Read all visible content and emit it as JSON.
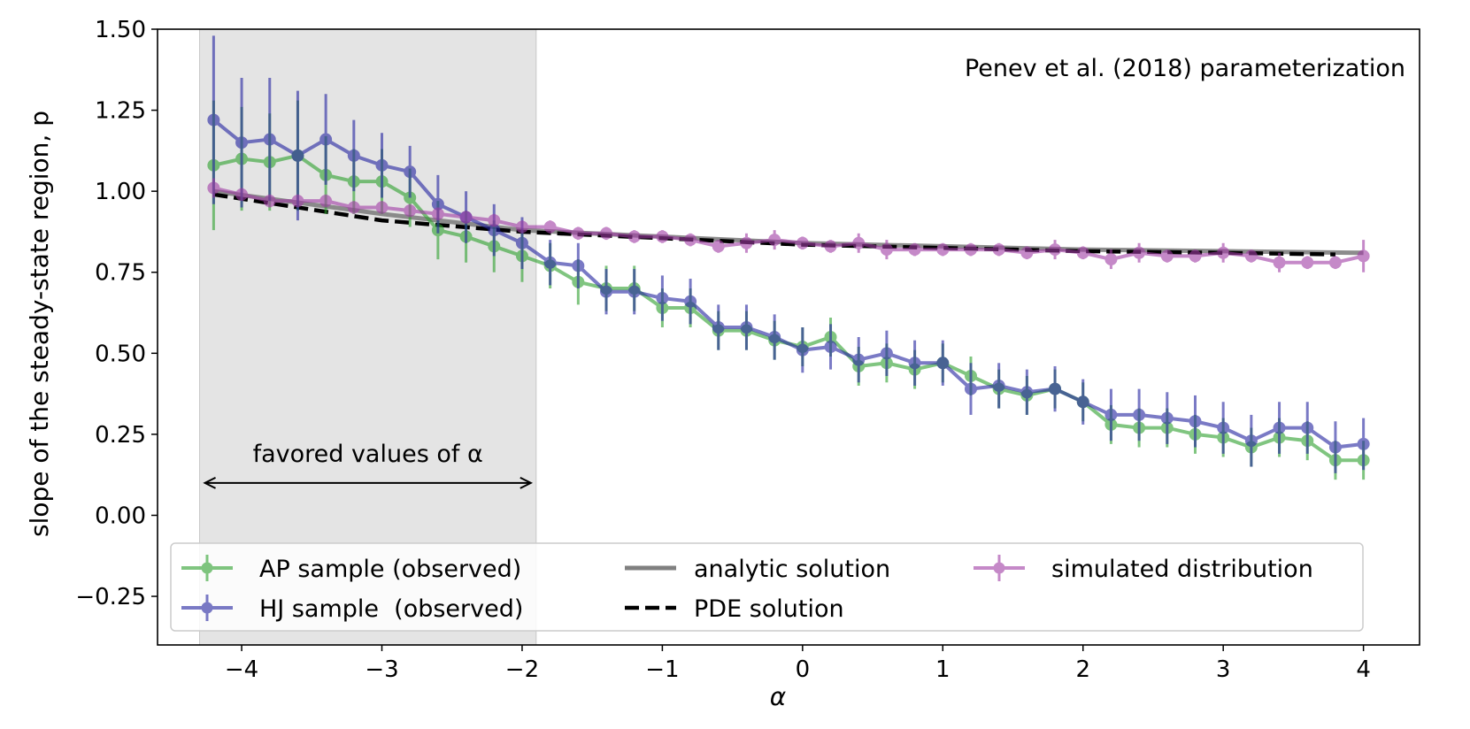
{
  "chart_data": {
    "type": "line",
    "title": "",
    "annotation": "Penev et al. (2018) parameterization",
    "xlabel": "α",
    "ylabel": "slope of the steady-state region, p",
    "xlim": [
      -4.6,
      4.4
    ],
    "ylim": [
      -0.4,
      1.5
    ],
    "xticks": [
      -4,
      -3,
      -2,
      -1,
      0,
      1,
      2,
      3,
      4
    ],
    "xtick_labels": [
      "−4",
      "−3",
      "−2",
      "−1",
      "0",
      "1",
      "2",
      "3",
      "4"
    ],
    "yticks": [
      -0.25,
      0.0,
      0.25,
      0.5,
      0.75,
      1.0,
      1.25,
      1.5
    ],
    "ytick_labels": [
      "−0.25",
      "0.00",
      "0.25",
      "0.50",
      "0.75",
      "1.00",
      "1.25",
      "1.50"
    ],
    "grid": false,
    "shaded_region": {
      "x": [
        -4.3,
        -1.9
      ],
      "label": "favored values of α"
    },
    "legend_placement": "lower-center",
    "x": [
      -4.2,
      -4.0,
      -3.8,
      -3.6,
      -3.4,
      -3.2,
      -3.0,
      -2.8,
      -2.6,
      -2.4,
      -2.2,
      -2.0,
      -1.8,
      -1.6,
      -1.4,
      -1.2,
      -1.0,
      -0.8,
      -0.6,
      -0.4,
      -0.2,
      0.0,
      0.2,
      0.4,
      0.6,
      0.8,
      1.0,
      1.2,
      1.4,
      1.6,
      1.8,
      2.0,
      2.2,
      2.4,
      2.6,
      2.8,
      3.0,
      3.2,
      3.4,
      3.6,
      3.8,
      4.0
    ],
    "series": [
      {
        "name": "AP sample (observed)",
        "color": "#2ca02c",
        "style": "errorbar",
        "values": [
          1.08,
          1.1,
          1.09,
          1.11,
          1.05,
          1.03,
          1.03,
          0.98,
          0.88,
          0.86,
          0.83,
          0.8,
          0.77,
          0.72,
          0.7,
          0.7,
          0.64,
          0.64,
          0.57,
          0.57,
          0.54,
          0.52,
          0.55,
          0.46,
          0.47,
          0.45,
          0.47,
          0.43,
          0.39,
          0.37,
          0.39,
          0.35,
          0.28,
          0.27,
          0.27,
          0.25,
          0.24,
          0.21,
          0.24,
          0.23,
          0.17,
          0.17
        ],
        "errors": [
          0.2,
          0.16,
          0.15,
          0.17,
          0.12,
          0.1,
          0.1,
          0.09,
          0.09,
          0.08,
          0.08,
          0.08,
          0.07,
          0.07,
          0.07,
          0.07,
          0.06,
          0.06,
          0.06,
          0.06,
          0.06,
          0.06,
          0.06,
          0.06,
          0.06,
          0.06,
          0.06,
          0.06,
          0.06,
          0.06,
          0.06,
          0.06,
          0.06,
          0.06,
          0.06,
          0.06,
          0.06,
          0.06,
          0.06,
          0.06,
          0.06,
          0.06
        ]
      },
      {
        "name": "HJ sample  (observed)",
        "color": "#2323a0",
        "style": "errorbar",
        "values": [
          1.22,
          1.15,
          1.16,
          1.11,
          1.16,
          1.11,
          1.08,
          1.06,
          0.96,
          0.92,
          0.88,
          0.84,
          0.78,
          0.77,
          0.69,
          0.69,
          0.67,
          0.66,
          0.58,
          0.58,
          0.55,
          0.51,
          0.52,
          0.48,
          0.5,
          0.47,
          0.47,
          0.39,
          0.4,
          0.38,
          0.39,
          0.35,
          0.31,
          0.31,
          0.3,
          0.29,
          0.27,
          0.23,
          0.27,
          0.27,
          0.21,
          0.22
        ],
        "errors": [
          0.26,
          0.2,
          0.19,
          0.2,
          0.14,
          0.11,
          0.1,
          0.08,
          0.09,
          0.08,
          0.08,
          0.08,
          0.07,
          0.07,
          0.07,
          0.07,
          0.07,
          0.07,
          0.07,
          0.07,
          0.07,
          0.07,
          0.07,
          0.07,
          0.07,
          0.07,
          0.07,
          0.08,
          0.07,
          0.07,
          0.07,
          0.07,
          0.08,
          0.08,
          0.08,
          0.08,
          0.08,
          0.08,
          0.08,
          0.08,
          0.08,
          0.08
        ]
      },
      {
        "name": "simulated distribution",
        "color": "#a03ca5",
        "style": "errorbar",
        "values": [
          1.01,
          0.99,
          0.97,
          0.97,
          0.97,
          0.95,
          0.95,
          0.94,
          0.93,
          0.92,
          0.91,
          0.89,
          0.89,
          0.87,
          0.87,
          0.86,
          0.86,
          0.85,
          0.83,
          0.84,
          0.85,
          0.84,
          0.83,
          0.84,
          0.82,
          0.82,
          0.82,
          0.82,
          0.82,
          0.81,
          0.82,
          0.81,
          0.79,
          0.81,
          0.8,
          0.8,
          0.81,
          0.8,
          0.78,
          0.78,
          0.78,
          0.8
        ],
        "errors": [
          0.03,
          0.02,
          0.02,
          0.02,
          0.02,
          0.02,
          0.02,
          0.02,
          0.02,
          0.02,
          0.02,
          0.02,
          0.02,
          0.02,
          0.02,
          0.02,
          0.02,
          0.02,
          0.02,
          0.03,
          0.03,
          0.02,
          0.02,
          0.03,
          0.03,
          0.02,
          0.02,
          0.02,
          0.02,
          0.02,
          0.03,
          0.02,
          0.03,
          0.03,
          0.02,
          0.02,
          0.03,
          0.02,
          0.03,
          0.02,
          0.02,
          0.05
        ]
      },
      {
        "name": "analytic solution",
        "color": "#808080",
        "style": "solid",
        "x": [
          -4.2,
          -3.0,
          -2.0,
          -1.0,
          0.0,
          1.0,
          2.0,
          3.0,
          4.0
        ],
        "values": [
          1.0,
          0.93,
          0.88,
          0.86,
          0.84,
          0.83,
          0.82,
          0.815,
          0.81
        ]
      },
      {
        "name": "PDE solution",
        "color": "#000000",
        "style": "dashed",
        "x": [
          -4.2,
          -3.0,
          -2.0,
          -1.0,
          0.0,
          1.0,
          2.0,
          3.0,
          3.8
        ],
        "values": [
          0.99,
          0.91,
          0.875,
          0.855,
          0.835,
          0.825,
          0.815,
          0.81,
          0.805
        ]
      }
    ]
  }
}
